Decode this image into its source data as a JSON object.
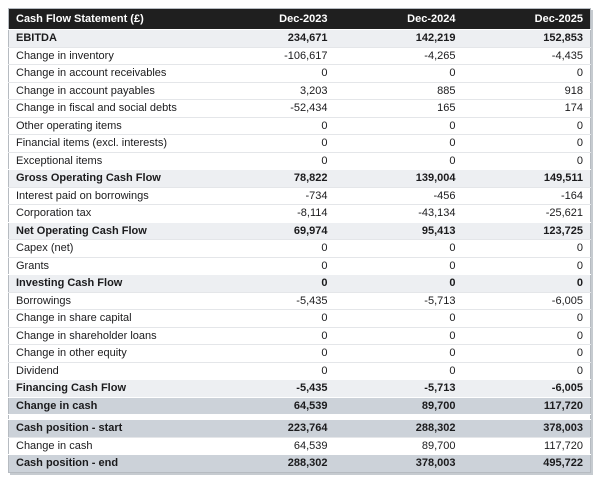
{
  "title": "Cash Flow Statement (£)",
  "colors": {
    "header_bg": "#1f1f1f",
    "header_text": "#ffffff",
    "subtotal_row_bg": "#edeff2",
    "highlight_row_bg": "#ccd2d9",
    "row_divider": "#e4e6e9",
    "outer_border": "#b6bbc1",
    "shadow": "#c6cbd0",
    "text": "#1b1b1d"
  },
  "chart_data": {
    "type": "table",
    "title": "Cash Flow Statement (£)",
    "currency": "£",
    "columns": [
      "Dec-2023",
      "Dec-2024",
      "Dec-2025"
    ],
    "rows": [
      {
        "label": "EBITDA",
        "values": [
          234671,
          142219,
          152853
        ],
        "style": "subtotal"
      },
      {
        "label": "Change in inventory",
        "values": [
          -106617,
          -4265,
          -4435
        ],
        "style": "normal"
      },
      {
        "label": "Change in account receivables",
        "values": [
          0,
          0,
          0
        ],
        "style": "normal"
      },
      {
        "label": "Change in account payables",
        "values": [
          3203,
          885,
          918
        ],
        "style": "normal"
      },
      {
        "label": "Change in fiscal and social debts",
        "values": [
          -52434,
          165,
          174
        ],
        "style": "normal"
      },
      {
        "label": "Other operating items",
        "values": [
          0,
          0,
          0
        ],
        "style": "normal"
      },
      {
        "label": "Financial items (excl. interests)",
        "values": [
          0,
          0,
          0
        ],
        "style": "normal"
      },
      {
        "label": "Exceptional items",
        "values": [
          0,
          0,
          0
        ],
        "style": "normal"
      },
      {
        "label": "Gross Operating Cash Flow",
        "values": [
          78822,
          139004,
          149511
        ],
        "style": "subtotal"
      },
      {
        "label": "Interest paid on borrowings",
        "values": [
          -734,
          -456,
          -164
        ],
        "style": "normal"
      },
      {
        "label": "Corporation tax",
        "values": [
          -8114,
          -43134,
          -25621
        ],
        "style": "normal"
      },
      {
        "label": "Net Operating Cash Flow",
        "values": [
          69974,
          95413,
          123725
        ],
        "style": "subtotal"
      },
      {
        "label": "Capex (net)",
        "values": [
          0,
          0,
          0
        ],
        "style": "normal"
      },
      {
        "label": "Grants",
        "values": [
          0,
          0,
          0
        ],
        "style": "normal"
      },
      {
        "label": "Investing Cash Flow",
        "values": [
          0,
          0,
          0
        ],
        "style": "subtotal"
      },
      {
        "label": "Borrowings",
        "values": [
          -5435,
          -5713,
          -6005
        ],
        "style": "normal"
      },
      {
        "label": "Change in share capital",
        "values": [
          0,
          0,
          0
        ],
        "style": "normal"
      },
      {
        "label": "Change in shareholder loans",
        "values": [
          0,
          0,
          0
        ],
        "style": "normal"
      },
      {
        "label": "Change in other equity",
        "values": [
          0,
          0,
          0
        ],
        "style": "normal"
      },
      {
        "label": "Dividend",
        "values": [
          0,
          0,
          0
        ],
        "style": "normal"
      },
      {
        "label": "Financing Cash Flow",
        "values": [
          -5435,
          -5713,
          -6005
        ],
        "style": "subtotal"
      },
      {
        "label": "Change in cash",
        "values": [
          64539,
          89700,
          117720
        ],
        "style": "highlight"
      },
      {
        "label": "",
        "values": null,
        "style": "spacer"
      },
      {
        "label": "Cash position - start",
        "values": [
          223764,
          288302,
          378003
        ],
        "style": "highlight"
      },
      {
        "label": "Change in cash",
        "values": [
          64539,
          89700,
          117720
        ],
        "style": "normal"
      },
      {
        "label": "Cash position - end",
        "values": [
          288302,
          378003,
          495722
        ],
        "style": "highlight"
      }
    ]
  }
}
